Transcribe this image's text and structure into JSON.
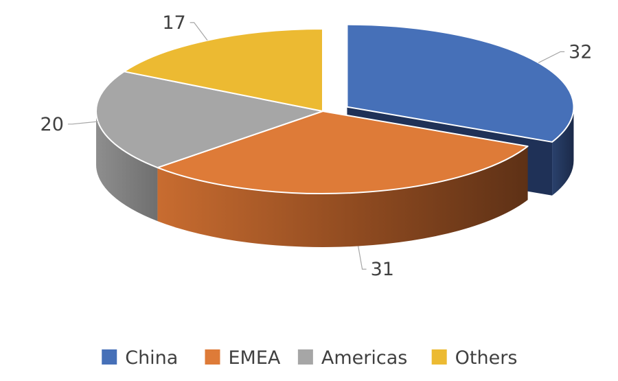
{
  "chart_data": {
    "type": "pie",
    "style": "3d-exploded",
    "categories": [
      "China",
      "EMEA",
      "Americas",
      "Others"
    ],
    "values": [
      32,
      31,
      20,
      17
    ],
    "colors": [
      "#4670B8",
      "#DE7B38",
      "#A6A6A6",
      "#ECBA32"
    ],
    "exploded": [
      "China"
    ],
    "data_labels": true,
    "legend_position": "bottom",
    "title": ""
  }
}
